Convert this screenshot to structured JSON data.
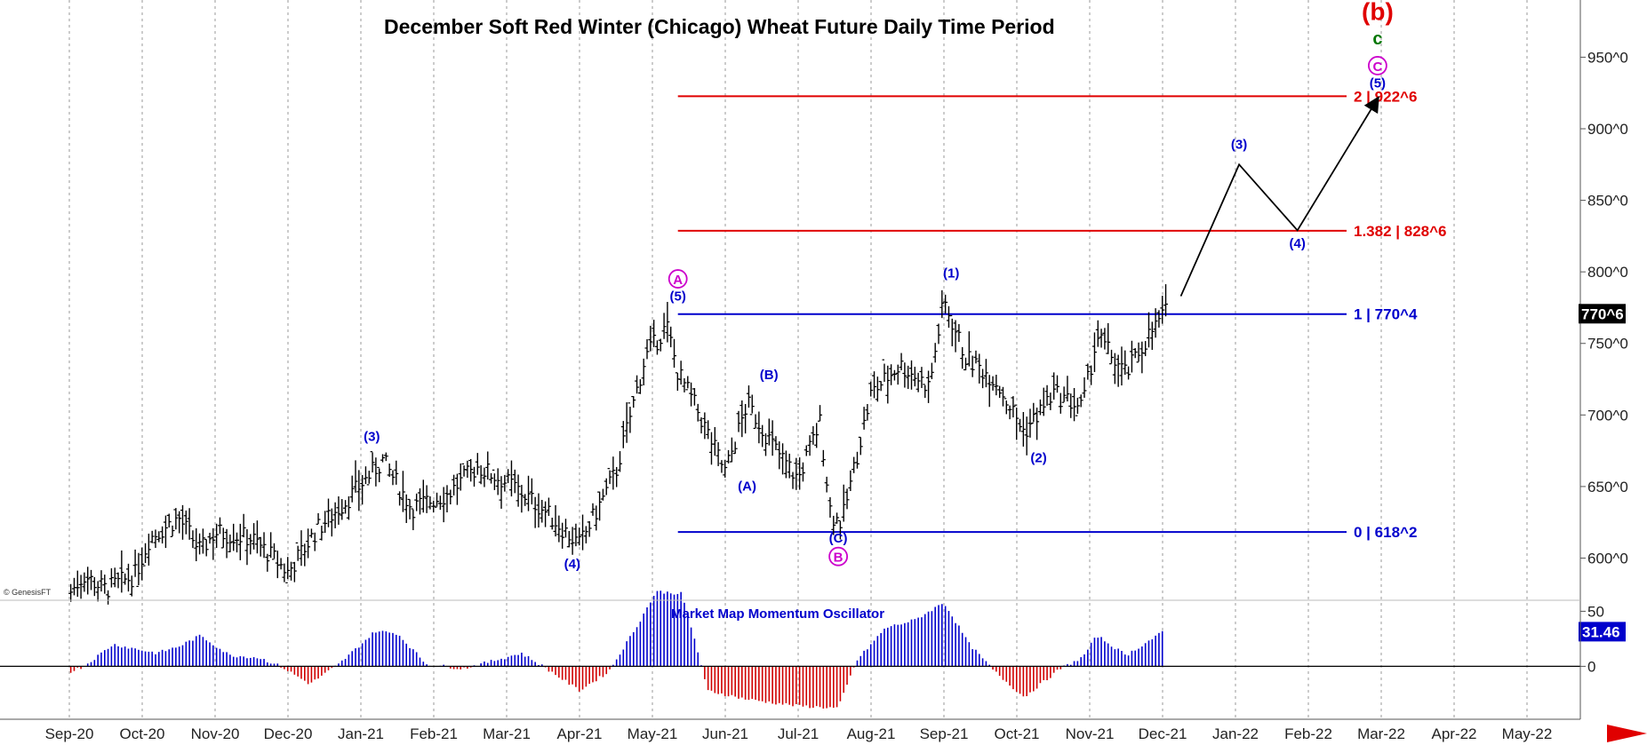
{
  "title": "December Soft Red Winter (Chicago) Wheat Future  Daily Time Period",
  "copyright": "© GenesisFT",
  "colors": {
    "bars": "#000000",
    "fib_red": "#e00000",
    "fib_blue": "#0000cc",
    "wave_blue": "#0000cc",
    "magenta": "#cc00cc",
    "green": "#007700",
    "osc_pos": "#0000cc",
    "osc_neg": "#d00000"
  },
  "chart_data": [
    {
      "type": "ohlc",
      "title": "December Soft Red Winter (Chicago) Wheat Future  Daily Time Period",
      "x_months": [
        "Sep-20",
        "Oct-20",
        "Nov-20",
        "Dec-20",
        "Jan-21",
        "Feb-21",
        "Mar-21",
        "Apr-21",
        "May-21",
        "Jun-21",
        "Jul-21",
        "Aug-21",
        "Sep-21",
        "Oct-21",
        "Nov-21",
        "Dec-21",
        "Jan-22",
        "Feb-22",
        "Mar-22",
        "Apr-22",
        "May-22"
      ],
      "y_ticks": [
        "600^0",
        "650^0",
        "700^0",
        "750^0",
        "800^0",
        "850^0",
        "900^0",
        "950^0"
      ],
      "y_tick_values": [
        600,
        650,
        700,
        750,
        800,
        850,
        900,
        950
      ],
      "ylim": [
        573,
        985
      ],
      "last_price_label": "770^6",
      "last_price": 770.75,
      "close_path": [
        {
          "x": 0.0,
          "y": 575
        },
        {
          "x": 0.2,
          "y": 588
        },
        {
          "x": 0.5,
          "y": 578
        },
        {
          "x": 0.9,
          "y": 588
        },
        {
          "x": 1.1,
          "y": 614
        },
        {
          "x": 1.5,
          "y": 628
        },
        {
          "x": 1.8,
          "y": 605
        },
        {
          "x": 2.0,
          "y": 618
        },
        {
          "x": 2.5,
          "y": 614
        },
        {
          "x": 2.8,
          "y": 600
        },
        {
          "x": 3.0,
          "y": 590
        },
        {
          "x": 3.4,
          "y": 620
        },
        {
          "x": 3.8,
          "y": 640
        },
        {
          "x": 4.3,
          "y": 668
        },
        {
          "x": 4.7,
          "y": 635
        },
        {
          "x": 5.2,
          "y": 645
        },
        {
          "x": 5.6,
          "y": 664
        },
        {
          "x": 6.1,
          "y": 650
        },
        {
          "x": 6.5,
          "y": 634
        },
        {
          "x": 7.0,
          "y": 609
        },
        {
          "x": 7.5,
          "y": 660
        },
        {
          "x": 7.9,
          "y": 740
        },
        {
          "x": 8.2,
          "y": 762
        },
        {
          "x": 8.35,
          "y": 730
        },
        {
          "x": 8.6,
          "y": 705
        },
        {
          "x": 9.0,
          "y": 660
        },
        {
          "x": 9.3,
          "y": 708
        },
        {
          "x": 9.7,
          "y": 675
        },
        {
          "x": 10.0,
          "y": 655
        },
        {
          "x": 10.3,
          "y": 695
        },
        {
          "x": 10.45,
          "y": 630
        },
        {
          "x": 10.6,
          "y": 625
        },
        {
          "x": 11.0,
          "y": 715
        },
        {
          "x": 11.4,
          "y": 735
        },
        {
          "x": 11.8,
          "y": 720
        },
        {
          "x": 12.0,
          "y": 780
        },
        {
          "x": 12.3,
          "y": 740
        },
        {
          "x": 12.7,
          "y": 725
        },
        {
          "x": 13.1,
          "y": 688
        },
        {
          "x": 13.5,
          "y": 715
        },
        {
          "x": 13.9,
          "y": 705
        },
        {
          "x": 14.1,
          "y": 755
        },
        {
          "x": 14.5,
          "y": 728
        },
        {
          "x": 14.8,
          "y": 755
        },
        {
          "x": 15.05,
          "y": 772
        }
      ],
      "fib_levels": [
        {
          "label": "2 | 922^6",
          "value": 922.75,
          "color": "red"
        },
        {
          "label": "1.382 | 828^6",
          "value": 828.75,
          "color": "red"
        },
        {
          "label": "1 | 770^4",
          "value": 770.5,
          "color": "blue"
        },
        {
          "label": "0 | 618^2",
          "value": 618.25,
          "color": "blue"
        }
      ],
      "projection_path": [
        {
          "x": 15.25,
          "y": 783
        },
        {
          "x": 16.05,
          "y": 875
        },
        {
          "x": 16.85,
          "y": 829
        },
        {
          "x": 17.95,
          "y": 921
        }
      ],
      "wave_labels": [
        {
          "text": "(3)",
          "x": 4.15,
          "y": 682,
          "color": "blue"
        },
        {
          "text": "(4)",
          "x": 6.9,
          "y": 593,
          "color": "blue"
        },
        {
          "text": "(5)",
          "x": 8.35,
          "y": 780,
          "color": "blue"
        },
        {
          "text": "A",
          "x": 8.35,
          "y": 792,
          "color": "magenta",
          "circled": true
        },
        {
          "text": "(A)",
          "x": 9.3,
          "y": 647,
          "color": "blue"
        },
        {
          "text": "(B)",
          "x": 9.6,
          "y": 725,
          "color": "blue"
        },
        {
          "text": "(C)",
          "x": 10.55,
          "y": 611,
          "color": "blue"
        },
        {
          "text": "B",
          "x": 10.55,
          "y": 598,
          "color": "magenta",
          "circled": true
        },
        {
          "text": "(1)",
          "x": 12.1,
          "y": 796,
          "color": "blue"
        },
        {
          "text": "(2)",
          "x": 13.3,
          "y": 667,
          "color": "blue"
        },
        {
          "text": "(3)",
          "x": 16.05,
          "y": 886,
          "color": "blue"
        },
        {
          "text": "(4)",
          "x": 16.85,
          "y": 817,
          "color": "blue"
        },
        {
          "text": "(5)",
          "x": 17.95,
          "y": 929,
          "color": "blue"
        },
        {
          "text": "C",
          "x": 17.95,
          "y": 941,
          "color": "magenta",
          "circled": true
        },
        {
          "text": "c",
          "x": 17.95,
          "y": 959,
          "color": "green"
        },
        {
          "text": "(b)",
          "x": 17.95,
          "y": 976,
          "color": "red"
        }
      ]
    },
    {
      "type": "bar",
      "title": "Market Map Momentum Oscillator",
      "y_ticks": [
        "50",
        "0"
      ],
      "y_tick_values": [
        50,
        0
      ],
      "ylim": [
        -40,
        60
      ],
      "last_value_label": "31.46",
      "last_value": 31.46,
      "profile": [
        {
          "x": 0.0,
          "v": -5
        },
        {
          "x": 0.2,
          "v": 0
        },
        {
          "x": 0.6,
          "v": 20
        },
        {
          "x": 1.2,
          "v": 12
        },
        {
          "x": 1.5,
          "v": 18
        },
        {
          "x": 1.8,
          "v": 28
        },
        {
          "x": 2.2,
          "v": 10
        },
        {
          "x": 2.6,
          "v": 8
        },
        {
          "x": 2.9,
          "v": 0
        },
        {
          "x": 3.3,
          "v": -16
        },
        {
          "x": 3.7,
          "v": 2
        },
        {
          "x": 4.2,
          "v": 32
        },
        {
          "x": 4.5,
          "v": 30
        },
        {
          "x": 4.9,
          "v": 2
        },
        {
          "x": 5.4,
          "v": -2
        },
        {
          "x": 5.7,
          "v": 3
        },
        {
          "x": 6.2,
          "v": 12
        },
        {
          "x": 6.5,
          "v": 0
        },
        {
          "x": 7.0,
          "v": -22
        },
        {
          "x": 7.4,
          "v": -5
        },
        {
          "x": 7.8,
          "v": 38
        },
        {
          "x": 8.05,
          "v": 68
        },
        {
          "x": 8.4,
          "v": 66
        },
        {
          "x": 8.6,
          "v": 20
        },
        {
          "x": 8.75,
          "v": -22
        },
        {
          "x": 9.3,
          "v": -30
        },
        {
          "x": 10.0,
          "v": -36
        },
        {
          "x": 10.55,
          "v": -38
        },
        {
          "x": 10.8,
          "v": 5
        },
        {
          "x": 11.2,
          "v": 35
        },
        {
          "x": 11.6,
          "v": 42
        },
        {
          "x": 12.0,
          "v": 58
        },
        {
          "x": 12.35,
          "v": 20
        },
        {
          "x": 12.7,
          "v": -5
        },
        {
          "x": 13.1,
          "v": -28
        },
        {
          "x": 13.6,
          "v": -2
        },
        {
          "x": 13.9,
          "v": 8
        },
        {
          "x": 14.1,
          "v": 28
        },
        {
          "x": 14.5,
          "v": 10
        },
        {
          "x": 15.0,
          "v": 31
        }
      ]
    }
  ]
}
